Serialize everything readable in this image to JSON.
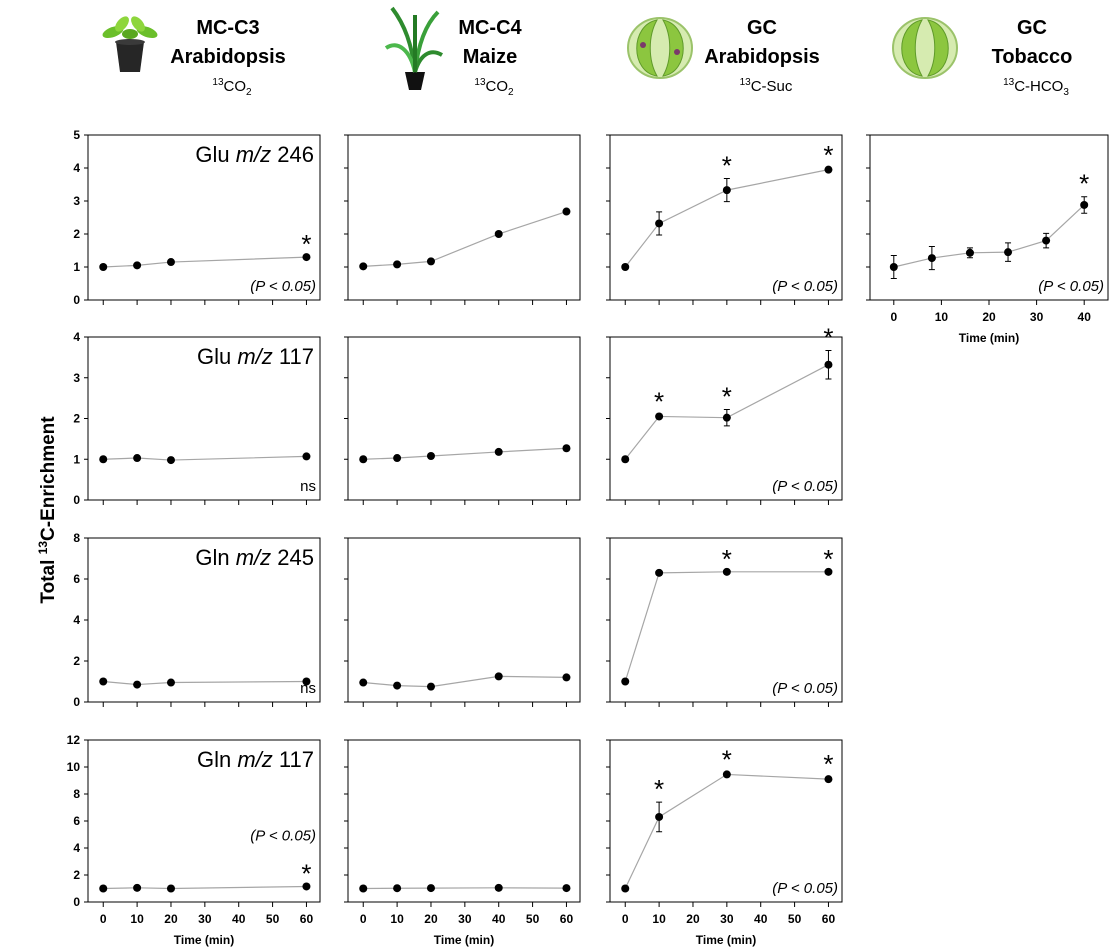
{
  "column_headers": [
    {
      "title": "MC-C3",
      "species": "Arabidopsis",
      "label_sup": "13",
      "label_main": "CO",
      "label_sub": "2"
    },
    {
      "title": "MC-C4",
      "species": "Maize",
      "label_sup": "13",
      "label_main": "CO",
      "label_sub": "2"
    },
    {
      "title": "GC",
      "species": "Arabidopsis",
      "label_sup": "13",
      "label_main": "C-Suc"
    },
    {
      "title": "GC",
      "species": "Tobacco",
      "label_sup": "13",
      "label_main": "C-HCO",
      "label_sub": "3"
    }
  ],
  "y_label_parts": [
    "Total ",
    "13",
    "C-Enrichment"
  ],
  "significance_marker": "*",
  "chart_data": [
    {
      "type": "line",
      "label_parts": [
        "Glu",
        "m/z",
        "246"
      ],
      "x": [
        0,
        10,
        20,
        60
      ],
      "values": [
        1.0,
        1.05,
        1.15,
        1.3
      ],
      "significant": [
        false,
        false,
        false,
        true
      ],
      "annotation": "(P < 0.05)",
      "xlim": [
        -4.5,
        64
      ],
      "ylim": [
        0,
        5
      ],
      "xticks": [
        0,
        10,
        20,
        30,
        40,
        50,
        60
      ],
      "yticks": [
        0,
        1,
        2,
        3,
        4,
        5
      ],
      "show_xtick_labels": false,
      "show_ytick_labels": true,
      "marker_color": "#000000",
      "line_color": "#a6a6a6"
    },
    {
      "type": "line",
      "x": [
        0,
        10,
        20,
        40,
        60
      ],
      "values": [
        1.02,
        1.08,
        1.17,
        2.0,
        2.68
      ],
      "xlim": [
        -4.5,
        64
      ],
      "ylim": [
        0,
        5
      ],
      "xticks": [
        0,
        10,
        20,
        30,
        40,
        50,
        60
      ],
      "yticks": [
        0,
        1,
        2,
        3,
        4,
        5
      ],
      "show_xtick_labels": false,
      "show_ytick_labels": false,
      "marker_color": "#000000",
      "line_color": "#a6a6a6"
    },
    {
      "type": "line",
      "x": [
        0,
        10,
        30,
        60
      ],
      "values": [
        1.0,
        2.32,
        3.33,
        3.95
      ],
      "errors": [
        null,
        0.35,
        0.35,
        0.05
      ],
      "significant": [
        false,
        false,
        true,
        true
      ],
      "annotation": "(P < 0.05)",
      "xlim": [
        -4.5,
        64
      ],
      "ylim": [
        0,
        5
      ],
      "xticks": [
        0,
        10,
        20,
        30,
        40,
        50,
        60
      ],
      "yticks": [
        0,
        1,
        2,
        3,
        4,
        5
      ],
      "show_xtick_labels": false,
      "show_ytick_labels": false,
      "marker_color": "#000000",
      "line_color": "#a6a6a6"
    },
    {
      "type": "line",
      "x": [
        0,
        8,
        16,
        24,
        32,
        40
      ],
      "values": [
        1.0,
        1.27,
        1.43,
        1.45,
        1.8,
        2.88
      ],
      "errors": [
        0.35,
        0.35,
        0.15,
        0.28,
        0.22,
        0.25
      ],
      "significant": [
        false,
        false,
        false,
        false,
        false,
        true
      ],
      "annotation": "(P < 0.05)",
      "xlabel": "Time (min)",
      "xlim": [
        -5,
        45
      ],
      "ylim": [
        0,
        5
      ],
      "xticks": [
        0,
        10,
        20,
        30,
        40
      ],
      "yticks": [
        0,
        1,
        2,
        3,
        4,
        5
      ],
      "show_xtick_labels": true,
      "show_ytick_labels": false,
      "marker_color": "#000000",
      "line_color": "#a6a6a6"
    },
    {
      "type": "line",
      "label_parts": [
        "Glu",
        "m/z",
        "117"
      ],
      "x": [
        0,
        10,
        20,
        60
      ],
      "values": [
        1.0,
        1.03,
        0.98,
        1.07
      ],
      "annotation": "ns",
      "xlim": [
        -4.5,
        64
      ],
      "ylim": [
        0,
        4
      ],
      "xticks": [
        0,
        10,
        20,
        30,
        40,
        50,
        60
      ],
      "yticks": [
        0,
        1,
        2,
        3,
        4
      ],
      "show_xtick_labels": false,
      "show_ytick_labels": true,
      "marker_color": "#000000",
      "line_color": "#a6a6a6"
    },
    {
      "type": "line",
      "x": [
        0,
        10,
        20,
        40,
        60
      ],
      "values": [
        1.0,
        1.03,
        1.08,
        1.18,
        1.27
      ],
      "xlim": [
        -4.5,
        64
      ],
      "ylim": [
        0,
        4
      ],
      "xticks": [
        0,
        10,
        20,
        30,
        40,
        50,
        60
      ],
      "yticks": [
        0,
        1,
        2,
        3,
        4
      ],
      "show_xtick_labels": false,
      "show_ytick_labels": false,
      "marker_color": "#000000",
      "line_color": "#a6a6a6"
    },
    {
      "type": "line",
      "x": [
        0,
        10,
        30,
        60
      ],
      "values": [
        1.0,
        2.05,
        2.02,
        3.32
      ],
      "errors": [
        null,
        0.05,
        0.2,
        0.35
      ],
      "significant": [
        false,
        true,
        true,
        true
      ],
      "annotation": "(P < 0.05)",
      "xlim": [
        -4.5,
        64
      ],
      "ylim": [
        0,
        4
      ],
      "xticks": [
        0,
        10,
        20,
        30,
        40,
        50,
        60
      ],
      "yticks": [
        0,
        1,
        2,
        3,
        4
      ],
      "show_xtick_labels": false,
      "show_ytick_labels": false,
      "marker_color": "#000000",
      "line_color": "#a6a6a6"
    },
    {
      "type": "line",
      "label_parts": [
        "Gln",
        "m/z",
        "245"
      ],
      "x": [
        0,
        10,
        20,
        60
      ],
      "values": [
        1.0,
        0.85,
        0.95,
        1.0
      ],
      "annotation": "ns",
      "xlim": [
        -4.5,
        64
      ],
      "ylim": [
        0,
        8
      ],
      "xticks": [
        0,
        10,
        20,
        30,
        40,
        50,
        60
      ],
      "yticks": [
        0,
        2,
        4,
        6,
        8
      ],
      "show_xtick_labels": false,
      "show_ytick_labels": true,
      "marker_color": "#000000",
      "line_color": "#a6a6a6"
    },
    {
      "type": "line",
      "x": [
        0,
        10,
        20,
        40,
        60
      ],
      "values": [
        0.95,
        0.8,
        0.75,
        1.25,
        1.2
      ],
      "xlim": [
        -4.5,
        64
      ],
      "ylim": [
        0,
        8
      ],
      "xticks": [
        0,
        10,
        20,
        30,
        40,
        50,
        60
      ],
      "yticks": [
        0,
        2,
        4,
        6,
        8
      ],
      "show_xtick_labels": false,
      "show_ytick_labels": false,
      "marker_color": "#000000",
      "line_color": "#a6a6a6"
    },
    {
      "type": "line",
      "x": [
        0,
        10,
        30,
        60
      ],
      "values": [
        1.0,
        6.3,
        6.35,
        6.35
      ],
      "significant": [
        false,
        false,
        true,
        true
      ],
      "annotation": "(P < 0.05)",
      "xlim": [
        -4.5,
        64
      ],
      "ylim": [
        0,
        8
      ],
      "xticks": [
        0,
        10,
        20,
        30,
        40,
        50,
        60
      ],
      "yticks": [
        0,
        2,
        4,
        6,
        8
      ],
      "show_xtick_labels": false,
      "show_ytick_labels": false,
      "marker_color": "#000000",
      "line_color": "#a6a6a6"
    },
    {
      "type": "line",
      "label_parts": [
        "Gln",
        "m/z",
        "117"
      ],
      "x": [
        0,
        10,
        20,
        60
      ],
      "values": [
        1.0,
        1.05,
        1.0,
        1.15
      ],
      "significant": [
        false,
        false,
        false,
        true
      ],
      "annotation": "(P < 0.05)",
      "xlabel": "Time (min)",
      "xlim": [
        -4.5,
        64
      ],
      "ylim": [
        0,
        12
      ],
      "xticks": [
        0,
        10,
        20,
        30,
        40,
        50,
        60
      ],
      "yticks": [
        0,
        2,
        4,
        6,
        8,
        10,
        12
      ],
      "show_xtick_labels": true,
      "show_ytick_labels": true,
      "marker_color": "#000000",
      "line_color": "#a6a6a6"
    },
    {
      "type": "line",
      "x": [
        0,
        10,
        20,
        40,
        60
      ],
      "values": [
        1.0,
        1.02,
        1.03,
        1.05,
        1.03
      ],
      "xlabel": "Time (min)",
      "xlim": [
        -4.5,
        64
      ],
      "ylim": [
        0,
        12
      ],
      "xticks": [
        0,
        10,
        20,
        30,
        40,
        50,
        60
      ],
      "yticks": [
        0,
        2,
        4,
        6,
        8,
        10,
        12
      ],
      "show_xtick_labels": true,
      "show_ytick_labels": false,
      "marker_color": "#000000",
      "line_color": "#a6a6a6"
    },
    {
      "type": "line",
      "x": [
        0,
        10,
        30,
        60
      ],
      "values": [
        1.0,
        6.3,
        9.45,
        9.1
      ],
      "errors": [
        null,
        1.1,
        0.15,
        0.15
      ],
      "significant": [
        false,
        true,
        true,
        true
      ],
      "annotation": "(P < 0.05)",
      "xlabel": "Time (min)",
      "xlim": [
        -4.5,
        64
      ],
      "ylim": [
        0,
        12
      ],
      "xticks": [
        0,
        10,
        20,
        30,
        40,
        50,
        60
      ],
      "yticks": [
        0,
        2,
        4,
        6,
        8,
        10,
        12
      ],
      "show_xtick_labels": true,
      "show_ytick_labels": false,
      "marker_color": "#000000",
      "line_color": "#a6a6a6"
    }
  ]
}
